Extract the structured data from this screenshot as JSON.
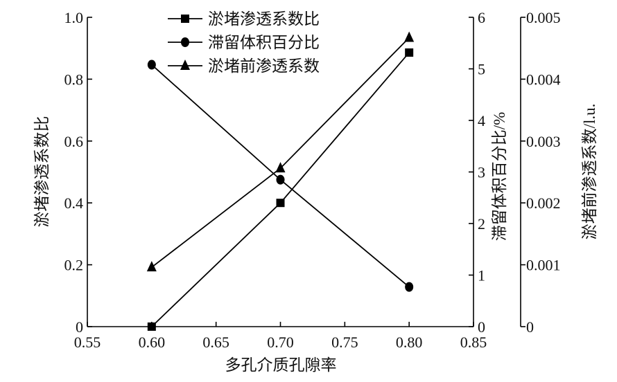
{
  "chart_data": {
    "type": "line",
    "xlabel": "多孔介质孔隙率",
    "x": [
      0.6,
      0.7,
      0.8
    ],
    "xlim": [
      0.55,
      0.85
    ],
    "xticks": [
      "0.55",
      "0.60",
      "0.65",
      "0.70",
      "0.75",
      "0.80",
      "0.85"
    ],
    "axes": [
      {
        "id": "left",
        "label": "淤堵渗透系数比",
        "ylim": [
          0,
          1.0
        ],
        "ticks": [
          "0",
          "0.2",
          "0.4",
          "0.6",
          "0.8",
          "1.0"
        ]
      },
      {
        "id": "right1",
        "label": "滞留体积百分比/%",
        "ylim": [
          0,
          6
        ],
        "ticks": [
          "0",
          "1",
          "2",
          "3",
          "4",
          "5",
          "6"
        ]
      },
      {
        "id": "right2",
        "label": "淤堵前渗透系数/l.u.",
        "ylim": [
          0,
          0.005
        ],
        "ticks": [
          "0",
          "0.001",
          "0.002",
          "0.003",
          "0.004",
          "0.005"
        ]
      }
    ],
    "series": [
      {
        "name": "淤堵渗透系数比",
        "axis": "left",
        "marker": "square",
        "values": [
          0.0,
          0.4,
          0.886
        ]
      },
      {
        "name": "滞留体积百分比",
        "axis": "right1",
        "marker": "circle",
        "values": [
          5.08,
          2.85,
          0.77
        ]
      },
      {
        "name": "淤堵前渗透系数",
        "axis": "right2",
        "marker": "triangle",
        "values": [
          0.00096,
          0.00256,
          0.00467
        ]
      }
    ],
    "legend": "top-center",
    "grid": false,
    "color": "#000000"
  }
}
